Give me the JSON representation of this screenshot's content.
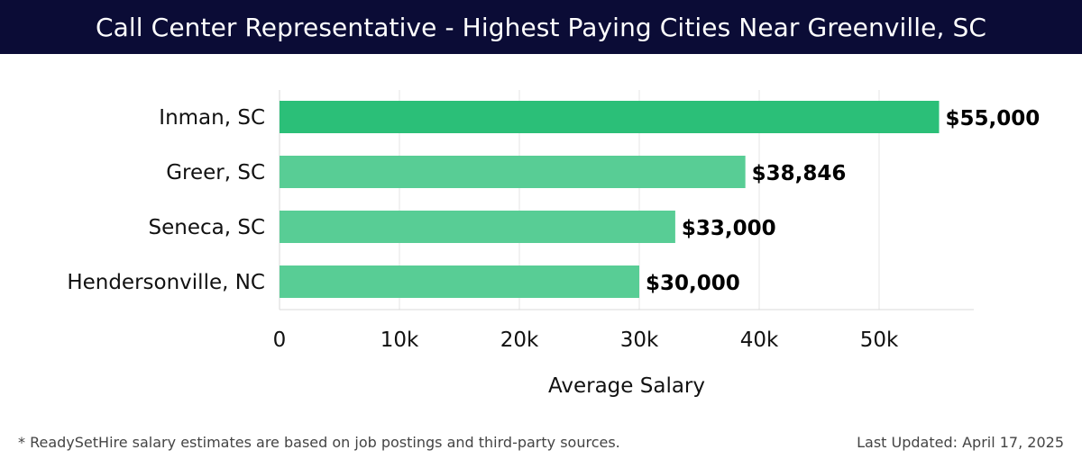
{
  "header": {
    "title": "Call Center Representative - Highest Paying Cities Near Greenville, SC"
  },
  "chart_data": {
    "type": "bar",
    "orientation": "horizontal",
    "title": "Call Center Representative - Highest Paying Cities Near Greenville, SC",
    "categories": [
      "Inman, SC",
      "Greer, SC",
      "Seneca, SC",
      "Hendersonville, NC"
    ],
    "values": [
      55000,
      38846,
      33000,
      30000
    ],
    "value_labels": [
      "$55,000",
      "$38,846",
      "$33,000",
      "$30,000"
    ],
    "xlabel": "Average Salary",
    "ylabel": "",
    "xlim": [
      0,
      58000
    ],
    "x_ticks": [
      0,
      10000,
      20000,
      30000,
      40000,
      50000
    ],
    "x_tick_labels": [
      "0",
      "10k",
      "20k",
      "30k",
      "40k",
      "50k"
    ],
    "grid": true,
    "colors": {
      "highlight": "#2bbf78",
      "bar": "#58cd95"
    }
  },
  "footer": {
    "note": "* ReadySetHire salary estimates are based on job postings and third-party sources.",
    "updated": "Last Updated: April 17, 2025"
  }
}
